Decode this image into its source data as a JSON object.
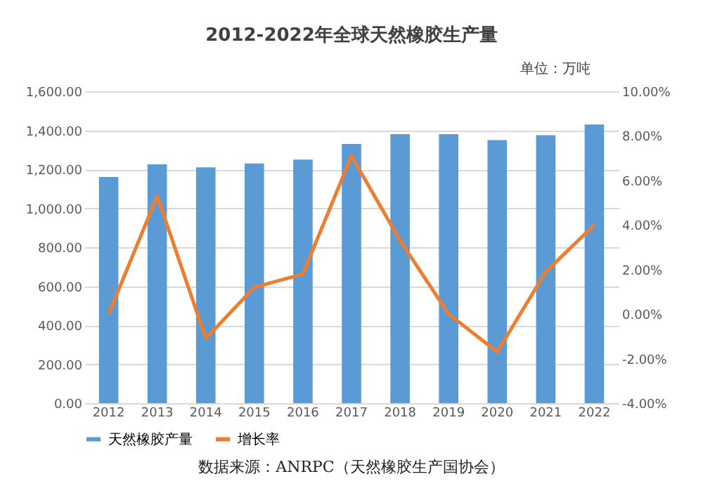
{
  "chart_data": {
    "type": "bar",
    "title": "2012-2022年全球天然橡胶生产量",
    "subtitle": "单位：万吨",
    "categories": [
      "2012",
      "2013",
      "2014",
      "2015",
      "2016",
      "2017",
      "2018",
      "2019",
      "2020",
      "2021",
      "2022"
    ],
    "series": [
      {
        "name": "天然橡胶产量",
        "color": "#5b9bd5",
        "values": [
          1160,
          1225,
          1210,
          1230,
          1250,
          1330,
          1380,
          1380,
          1350,
          1375,
          1430
        ]
      },
      {
        "name": "增长率",
        "type": "line",
        "axis": "y2",
        "color": "#ed7d31",
        "marker": "none",
        "line_style": "solid",
        "values": [
          0.0,
          5.3,
          -1.1,
          1.2,
          1.8,
          7.1,
          3.3,
          0.0,
          -1.7,
          1.9,
          4.0
        ]
      }
    ],
    "ylim": [
      0,
      1600
    ],
    "yticks": [
      {
        "value": 0,
        "label": "0.00"
      },
      {
        "value": 200,
        "label": "200.00"
      },
      {
        "value": 400,
        "label": "400.00"
      },
      {
        "value": 600,
        "label": "600.00"
      },
      {
        "value": 800,
        "label": "800.00"
      },
      {
        "value": 1000,
        "label": "1,000.00"
      },
      {
        "value": 1200,
        "label": "1,200.00"
      },
      {
        "value": 1400,
        "label": "1,400.00"
      },
      {
        "value": 1600,
        "label": "1,600.00"
      }
    ],
    "y2lim": [
      -4,
      10
    ],
    "y2ticks": [
      {
        "value": -4,
        "label": "-4.00%"
      },
      {
        "value": -2,
        "label": "-2.00%"
      },
      {
        "value": 0,
        "label": "0.00%"
      },
      {
        "value": 2,
        "label": "2.00%"
      },
      {
        "value": 4,
        "label": "4.00%"
      },
      {
        "value": 6,
        "label": "6.00%"
      },
      {
        "value": 8,
        "label": "8.00%"
      },
      {
        "value": 10,
        "label": "10.00%"
      }
    ],
    "grid": "y",
    "legend": "bottom",
    "annotations": [
      "数据来源：ANRPC（天然橡胶生产国协会）"
    ]
  }
}
